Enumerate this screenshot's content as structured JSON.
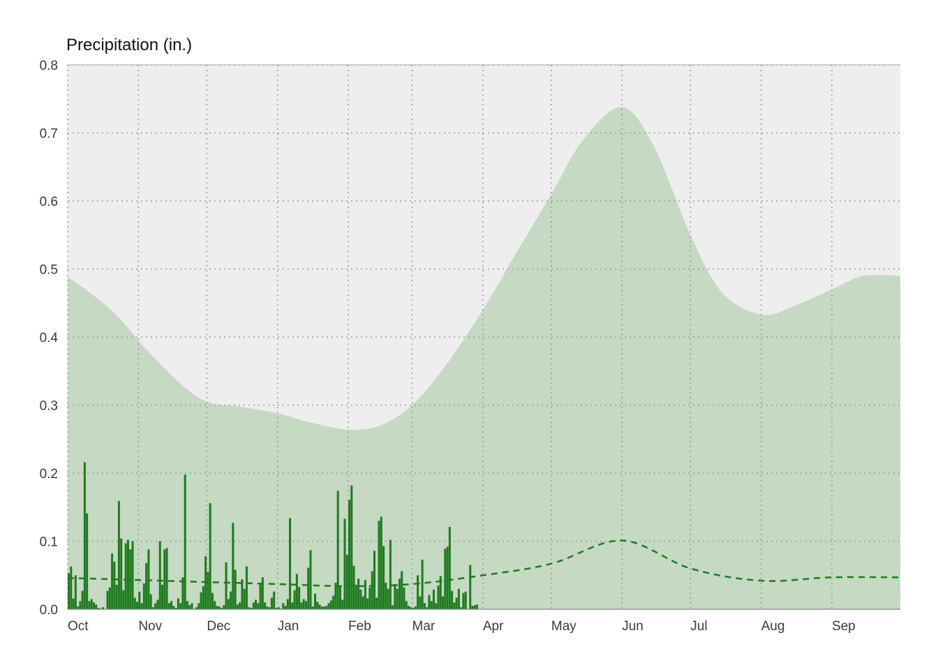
{
  "chart_data": {
    "type": "bar",
    "ylabel": "Precipitation (in.)",
    "xlabel": "",
    "ylim": [
      0,
      0.8
    ],
    "yticks": [
      0.0,
      0.1,
      0.2,
      0.3,
      0.4,
      0.5,
      0.6,
      0.7,
      0.8
    ],
    "ytick_labels": [
      "0.0",
      "0.1",
      "0.2",
      "0.3",
      "0.4",
      "0.5",
      "0.6",
      "0.7",
      "0.8"
    ],
    "xlim": [
      "2022-10-01",
      "2023-09-30"
    ],
    "xticks": [
      "2022-10-01",
      "2022-11-01",
      "2022-12-01",
      "2023-01-01",
      "2023-02-01",
      "2023-03-01",
      "2023-04-01",
      "2023-05-01",
      "2023-06-01",
      "2023-07-01",
      "2023-08-01",
      "2023-09-01"
    ],
    "xtick_labels": [
      "Oct",
      "Nov",
      "Dec",
      "Jan",
      "Feb",
      "Mar",
      "Apr",
      "May",
      "Jun",
      "Jul",
      "Aug",
      "Sep"
    ],
    "grid": true,
    "colors": {
      "background": "#eeeeee",
      "band_fill": "#c5d9c3",
      "bar": "#1e7b1e",
      "mean_line": "#1e7b1e",
      "grid": "#999999"
    },
    "band": {
      "description": "upper envelope of shaded range (lower bound 0)",
      "x": [
        "2022-10-01",
        "2022-10-20",
        "2022-11-05",
        "2022-11-20",
        "2022-12-01",
        "2022-12-15",
        "2023-01-01",
        "2023-01-15",
        "2023-02-01",
        "2023-02-15",
        "2023-03-01",
        "2023-03-15",
        "2023-04-01",
        "2023-04-15",
        "2023-05-01",
        "2023-05-15",
        "2023-06-01",
        "2023-06-15",
        "2023-07-01",
        "2023-07-15",
        "2023-08-01",
        "2023-08-15",
        "2023-09-01",
        "2023-09-15",
        "2023-09-30"
      ],
      "y": [
        0.489,
        0.44,
        0.38,
        0.33,
        0.305,
        0.298,
        0.288,
        0.275,
        0.264,
        0.27,
        0.3,
        0.355,
        0.44,
        0.52,
        0.61,
        0.69,
        0.738,
        0.68,
        0.55,
        0.465,
        0.433,
        0.445,
        0.47,
        0.49,
        0.49
      ]
    },
    "mean_line": {
      "style": "dashed",
      "x": [
        "2022-10-01",
        "2022-11-01",
        "2022-12-01",
        "2023-01-01",
        "2023-02-01",
        "2023-03-01",
        "2023-04-01",
        "2023-05-01",
        "2023-06-01",
        "2023-07-01",
        "2023-08-01",
        "2023-09-01",
        "2023-09-30"
      ],
      "y": [
        0.046,
        0.043,
        0.04,
        0.037,
        0.034,
        0.037,
        0.05,
        0.067,
        0.101,
        0.06,
        0.042,
        0.047,
        0.047
      ]
    },
    "series": [
      {
        "start_date": "2022-10-01",
        "values": [
          0.053,
          0.063,
          0.016,
          0.05,
          0.004,
          0.012,
          0.027,
          0.216,
          0.141,
          0.012,
          0.015,
          0.01,
          0.007,
          0.002,
          0.001,
          0.003,
          0.0,
          0.027,
          0.032,
          0.082,
          0.07,
          0.036,
          0.159,
          0.104,
          0.028,
          0.097,
          0.102,
          0.088,
          0.1,
          0.017,
          0.011,
          0.026,
          0.009,
          0.038,
          0.068,
          0.088,
          0.022,
          0.003,
          0.009,
          0.014,
          0.1,
          0.036,
          0.088,
          0.09,
          0.009,
          0.012,
          0.005,
          0.002,
          0.016,
          0.009,
          0.047,
          0.198,
          0.012,
          0.006,
          0.009,
          0.001,
          0.003,
          0.009,
          0.025,
          0.034,
          0.078,
          0.055,
          0.156,
          0.024,
          0.012,
          0.005,
          0.004,
          0.002,
          0.006,
          0.069,
          0.015,
          0.026,
          0.127,
          0.058,
          0.007,
          0.01,
          0.044,
          0.03,
          0.063,
          0.003,
          0.002,
          0.01,
          0.014,
          0.009,
          0.039,
          0.047,
          0.01,
          0.004,
          0.003,
          0.017,
          0.026,
          0.002,
          0.003,
          0.001,
          0.009,
          0.005,
          0.015,
          0.134,
          0.01,
          0.028,
          0.052,
          0.033,
          0.01,
          0.015,
          0.012,
          0.061,
          0.087,
          0.004,
          0.023,
          0.011,
          0.007,
          0.004,
          0.004,
          0.005,
          0.009,
          0.013,
          0.02,
          0.039,
          0.174,
          0.034,
          0.014,
          0.133,
          0.08,
          0.161,
          0.182,
          0.064,
          0.036,
          0.045,
          0.029,
          0.019,
          0.043,
          0.016,
          0.032,
          0.056,
          0.086,
          0.017,
          0.13,
          0.136,
          0.093,
          0.039,
          0.03,
          0.102,
          0.006,
          0.037,
          0.03,
          0.045,
          0.056,
          0.032,
          0.012,
          0.005,
          0.003,
          0.002,
          0.004,
          0.05,
          0.019,
          0.073,
          0.009,
          0.003,
          0.021,
          0.012,
          0.029,
          0.009,
          0.035,
          0.049,
          0.019,
          0.089,
          0.092,
          0.121,
          0.027,
          0.01,
          0.017,
          0.03,
          0.003,
          0.024,
          0.026,
          0.0,
          0.065,
          0.005,
          0.006,
          0.007
        ]
      }
    ]
  }
}
